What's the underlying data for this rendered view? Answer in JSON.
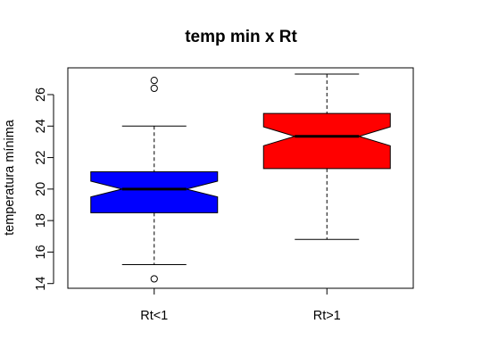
{
  "chart_data": {
    "type": "boxplot",
    "title": "temp min x Rt",
    "xlabel": "",
    "ylabel": "temperatura mínima",
    "ylim": [
      13.7,
      27.7
    ],
    "yticks": [
      14,
      16,
      18,
      20,
      22,
      24,
      26
    ],
    "notched": true,
    "categories": [
      "Rt<1",
      "Rt>1"
    ],
    "boxes": [
      {
        "label": "Rt<1",
        "color": "#0000ff",
        "whisker_low": 15.2,
        "q1": 18.5,
        "median": 20.0,
        "q3": 21.1,
        "whisker_high": 24.0,
        "notch_low": 19.5,
        "notch_high": 20.5,
        "outliers": [
          14.3,
          26.4,
          26.9
        ]
      },
      {
        "label": "Rt>1",
        "color": "#ff0000",
        "whisker_low": 16.8,
        "q1": 21.3,
        "median": 23.35,
        "q3": 24.8,
        "whisker_high": 27.3,
        "notch_low": 22.75,
        "notch_high": 23.95,
        "outliers": []
      }
    ]
  }
}
